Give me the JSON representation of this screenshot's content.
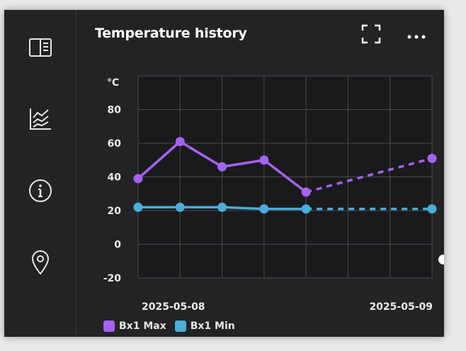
{
  "panel": {
    "title": "Temperature history"
  },
  "sidebar": {
    "items": [
      {
        "icon": "details-panel-icon"
      },
      {
        "icon": "chart-icon"
      },
      {
        "icon": "info-icon"
      },
      {
        "icon": "location-pin-icon"
      }
    ]
  },
  "header": {
    "fullscreen_icon": "fullscreen-icon",
    "more_icon": "more-options-icon"
  },
  "colors": {
    "background": "#232325",
    "plot_bg": "#1a1a1c",
    "grid": "#4a4a4e",
    "max_series": "#a463f2",
    "min_series": "#4aaed8"
  },
  "chart_data": {
    "type": "line",
    "ylabel": "°C",
    "ylim": [
      -20,
      100
    ],
    "yticks": [
      "80",
      "60",
      "40",
      "20",
      "0",
      "-20"
    ],
    "x_ticks": [
      "2025-05-08",
      "2025-05-09"
    ],
    "grid": true,
    "legend_position": "bottom-left",
    "series": [
      {
        "name": "Bx1 Max",
        "values": [
          39,
          61,
          46,
          50,
          31
        ],
        "forecast_values": [
          31,
          51
        ],
        "color": "#a463f2"
      },
      {
        "name": "Bx1 Min",
        "values": [
          22,
          22,
          22,
          21,
          21
        ],
        "forecast_values": [
          21,
          21
        ],
        "color": "#4aaed8"
      }
    ]
  }
}
